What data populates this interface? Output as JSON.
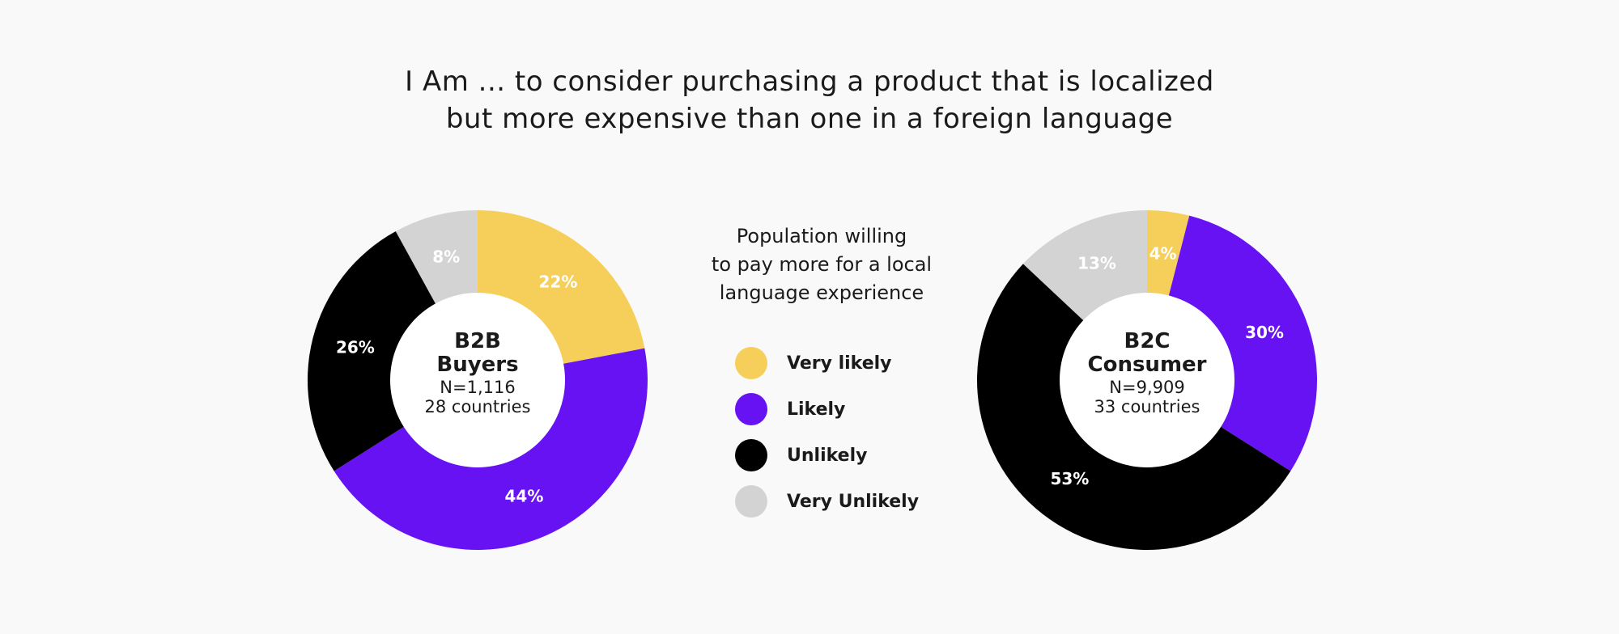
{
  "title": {
    "line1": "I Am ... to consider purchasing a product that is localized",
    "line2": "but more expensive than one in a foreign language"
  },
  "legend": {
    "heading": [
      "Population willing",
      "to pay more for a local",
      "language experience"
    ],
    "items": [
      {
        "label": "Very likely",
        "color": "#F5CF5A"
      },
      {
        "label": "Likely",
        "color": "#6712F2"
      },
      {
        "label": "Unlikely",
        "color": "#000000"
      },
      {
        "label": "Very Unlikely",
        "color": "#D3D3D3"
      }
    ]
  },
  "chart_data": [
    {
      "type": "pie",
      "center": {
        "title": [
          "B2B",
          "Buyers"
        ],
        "n": "N=1,116",
        "countries": "28 countries"
      },
      "categories": [
        "Very likely",
        "Likely",
        "Unlikely",
        "Very Unlikely"
      ],
      "values": [
        22,
        44,
        26,
        8
      ],
      "labels": [
        "22%",
        "44%",
        "26%",
        "8%"
      ],
      "colors": [
        "#F5CF5A",
        "#6712F2",
        "#000000",
        "#D3D3D3"
      ]
    },
    {
      "type": "pie",
      "center": {
        "title": [
          "B2C",
          "Consumer"
        ],
        "n": "N=9,909",
        "countries": "33 countries"
      },
      "categories": [
        "Very likely",
        "Likely",
        "Unlikely",
        "Very Unlikely"
      ],
      "values": [
        4,
        30,
        53,
        13
      ],
      "labels": [
        "4%",
        "30%",
        "53%",
        "13%"
      ],
      "colors": [
        "#F5CF5A",
        "#6712F2",
        "#000000",
        "#D3D3D3"
      ]
    }
  ]
}
